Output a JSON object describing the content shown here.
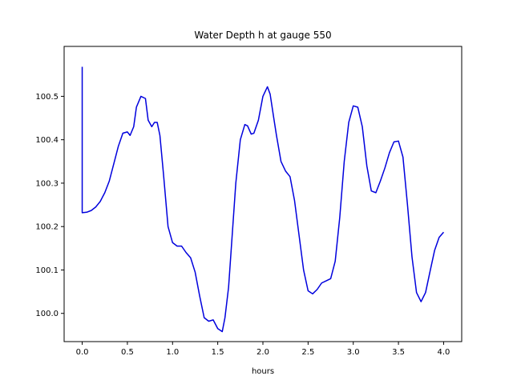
{
  "chart_data": {
    "type": "line",
    "title": "Water Depth h at gauge 550",
    "xlabel": "hours",
    "ylabel": "",
    "xlim": [
      -0.2,
      4.2
    ],
    "ylim": [
      99.935,
      100.615
    ],
    "xticks": [
      0.0,
      0.5,
      1.0,
      1.5,
      2.0,
      2.5,
      3.0,
      3.5,
      4.0
    ],
    "xtick_labels": [
      "0.0",
      "0.5",
      "1.0",
      "1.5",
      "2.0",
      "2.5",
      "3.0",
      "3.5",
      "4.0"
    ],
    "yticks": [
      100.0,
      100.1,
      100.2,
      100.3,
      100.4,
      100.5
    ],
    "ytick_labels": [
      "100.0",
      "100.1",
      "100.2",
      "100.3",
      "100.4",
      "100.5"
    ],
    "grid": false,
    "series": [
      {
        "color": "#0000dd",
        "x": [
          0.0,
          0.0,
          0.0,
          0.05,
          0.1,
          0.15,
          0.2,
          0.25,
          0.3,
          0.35,
          0.4,
          0.45,
          0.5,
          0.53,
          0.57,
          0.6,
          0.65,
          0.7,
          0.73,
          0.77,
          0.8,
          0.83,
          0.86,
          0.9,
          0.95,
          1.0,
          1.05,
          1.1,
          1.15,
          1.2,
          1.25,
          1.3,
          1.35,
          1.4,
          1.45,
          1.5,
          1.55,
          1.58,
          1.62,
          1.65,
          1.7,
          1.75,
          1.8,
          1.83,
          1.87,
          1.9,
          1.95,
          2.0,
          2.05,
          2.08,
          2.12,
          2.15,
          2.2,
          2.25,
          2.3,
          2.35,
          2.4,
          2.45,
          2.5,
          2.55,
          2.6,
          2.65,
          2.7,
          2.75,
          2.8,
          2.85,
          2.9,
          2.95,
          3.0,
          3.05,
          3.1,
          3.15,
          3.2,
          3.25,
          3.3,
          3.35,
          3.4,
          3.45,
          3.5,
          3.55,
          3.6,
          3.65,
          3.7,
          3.75,
          3.8,
          3.85,
          3.9,
          3.95,
          4.0
        ],
        "y": [
          100.568,
          100.35,
          100.232,
          100.233,
          100.237,
          100.245,
          100.258,
          100.278,
          100.305,
          100.345,
          100.385,
          100.415,
          100.418,
          100.41,
          100.43,
          100.475,
          100.5,
          100.495,
          100.445,
          100.43,
          100.44,
          100.44,
          100.41,
          100.32,
          100.2,
          100.163,
          100.155,
          100.155,
          100.14,
          100.128,
          100.095,
          100.04,
          99.99,
          99.982,
          99.985,
          99.965,
          99.958,
          99.99,
          100.06,
          100.15,
          100.3,
          100.4,
          100.435,
          100.432,
          100.413,
          100.415,
          100.445,
          100.5,
          100.522,
          100.505,
          100.45,
          100.41,
          100.35,
          100.328,
          100.315,
          100.26,
          100.18,
          100.1,
          100.052,
          100.045,
          100.055,
          100.07,
          100.075,
          100.08,
          100.12,
          100.22,
          100.35,
          100.44,
          100.478,
          100.475,
          100.43,
          100.34,
          100.282,
          100.278,
          100.305,
          100.335,
          100.37,
          100.395,
          100.397,
          100.36,
          100.25,
          100.13,
          100.048,
          100.027,
          100.048,
          100.097,
          100.145,
          100.175,
          100.187
        ]
      }
    ]
  }
}
